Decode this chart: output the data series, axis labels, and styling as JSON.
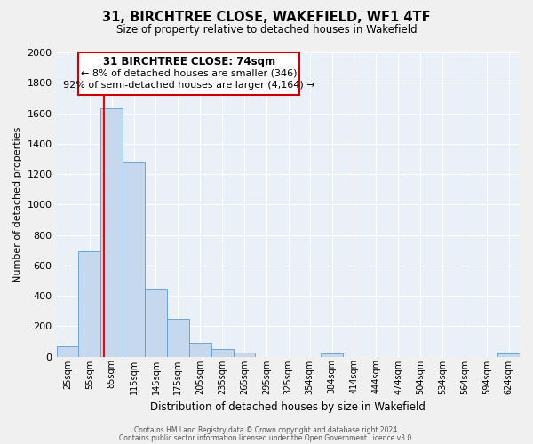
{
  "title": "31, BIRCHTREE CLOSE, WAKEFIELD, WF1 4TF",
  "subtitle": "Size of property relative to detached houses in Wakefield",
  "xlabel": "Distribution of detached houses by size in Wakefield",
  "ylabel": "Number of detached properties",
  "bar_color": "#c5d8ed",
  "bar_edge_color": "#5b9bd5",
  "background_color": "#eaf0f8",
  "grid_color": "#ffffff",
  "fig_facecolor": "#f0f0f0",
  "red_line_x": 74,
  "categories": [
    "25sqm",
    "55sqm",
    "85sqm",
    "115sqm",
    "145sqm",
    "175sqm",
    "205sqm",
    "235sqm",
    "265sqm",
    "295sqm",
    "325sqm",
    "354sqm",
    "384sqm",
    "414sqm",
    "444sqm",
    "474sqm",
    "504sqm",
    "534sqm",
    "564sqm",
    "594sqm",
    "624sqm"
  ],
  "bin_left_edges": [
    10,
    40,
    70,
    100,
    130,
    160,
    190,
    220,
    250,
    280,
    310,
    339,
    369,
    399,
    429,
    459,
    489,
    519,
    549,
    579,
    609
  ],
  "bin_width": 30,
  "values": [
    65,
    690,
    1630,
    1280,
    440,
    250,
    90,
    50,
    28,
    0,
    0,
    0,
    18,
    0,
    0,
    0,
    0,
    0,
    0,
    0,
    18
  ],
  "xlim_left": 10,
  "xlim_right": 639,
  "ylim": [
    0,
    2000
  ],
  "yticks": [
    0,
    200,
    400,
    600,
    800,
    1000,
    1200,
    1400,
    1600,
    1800,
    2000
  ],
  "annotation_title": "31 BIRCHTREE CLOSE: 74sqm",
  "annotation_line1": "← 8% of detached houses are smaller (346)",
  "annotation_line2": "92% of semi-detached houses are larger (4,164) →",
  "annotation_box_color": "#ffffff",
  "annotation_border_color": "#cc0000",
  "footer_line1": "Contains HM Land Registry data © Crown copyright and database right 2024.",
  "footer_line2": "Contains public sector information licensed under the Open Government Licence v3.0."
}
